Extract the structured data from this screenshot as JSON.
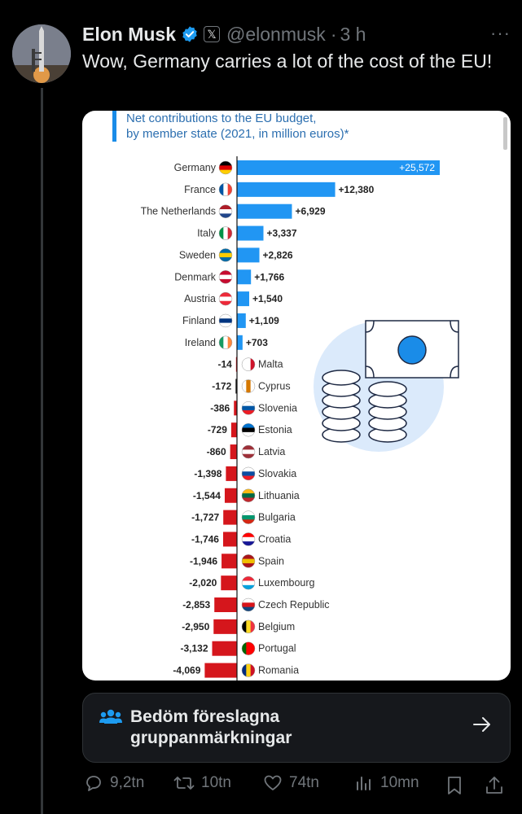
{
  "author": {
    "name": "Elon Musk",
    "handle": "@elonmusk",
    "time_sep": "·",
    "time": "3 h",
    "avatar_icon": "rocket-launch-avatar",
    "verified_color": "#1d9bf0"
  },
  "tweet": {
    "text": "Wow, Germany carries a lot of the cost of the EU!"
  },
  "more_label": "···",
  "x_logo": "𝕏",
  "chart_data": {
    "type": "bar",
    "title": "Net contributions to the EU budget,",
    "subtitle": "by member state (2021, in million euros)*",
    "categories": [
      "Germany",
      "France",
      "The Netherlands",
      "Italy",
      "Sweden",
      "Denmark",
      "Austria",
      "Finland",
      "Ireland",
      "Malta",
      "Cyprus",
      "Slovenia",
      "Estonia",
      "Latvia",
      "Slovakia",
      "Lithuania",
      "Bulgaria",
      "Croatia",
      "Spain",
      "Luxembourg",
      "Czech Republic",
      "Belgium",
      "Portugal",
      "Romania"
    ],
    "values": [
      25572,
      12380,
      6929,
      3337,
      2826,
      1766,
      1540,
      1109,
      703,
      -14,
      -172,
      -386,
      -729,
      -860,
      -1398,
      -1544,
      -1727,
      -1746,
      -1946,
      -2020,
      -2853,
      -2950,
      -3132,
      -4069
    ],
    "labels": [
      "+25,572",
      "+12,380",
      "+6,929",
      "+3,337",
      "+2,826",
      "+1,766",
      "+1,540",
      "+1,109",
      "+703",
      "-14",
      "-172",
      "-386",
      "-729",
      "-860",
      "-1,398",
      "-1,544",
      "-1,727",
      "-1,746",
      "-1,946",
      "-2,020",
      "-2,853",
      "-2,950",
      "-3,132",
      "-4,069"
    ],
    "positive_color": "#2196f3",
    "negative_color": "#d5161c",
    "accent_color": "#1a8ce8"
  },
  "community_note": {
    "text": "Bedöm föreslagna gruppanmärkningar",
    "icon": "people-icon"
  },
  "actions": {
    "replies": "9,2tn",
    "reposts": "10tn",
    "likes": "74tn",
    "views": "10mn"
  }
}
